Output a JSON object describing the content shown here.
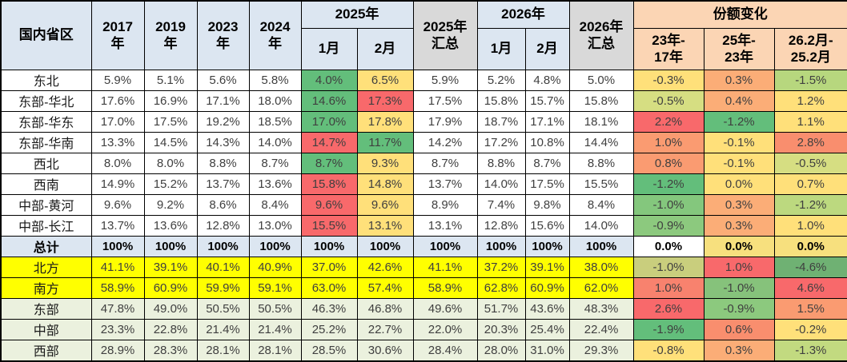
{
  "header": {
    "region": "国内省区",
    "years": [
      [
        "2017",
        "年"
      ],
      [
        "2019",
        "年"
      ],
      [
        "2023",
        "年"
      ],
      [
        "2024",
        "年"
      ]
    ],
    "g2025": "2025年",
    "months_2025": [
      "1月",
      "2月"
    ],
    "sum_2025": [
      "2025年",
      "汇总"
    ],
    "g2026": "2026年",
    "months_2026": [
      "1月",
      "2月"
    ],
    "sum_2026": [
      "2026年",
      "汇总"
    ],
    "share_group": "份额变化",
    "share_cols": [
      [
        "23年-",
        "17年"
      ],
      [
        "25年-",
        "23年"
      ],
      [
        "26.2月-",
        "25.2月"
      ]
    ]
  },
  "palette": {
    "header_blue": "#DCE6F1",
    "header_gray": "#D9D9D9",
    "header_tan": "#FBD5B4",
    "total_row": "#DCE6F1",
    "north_south_row": "#FFFF00",
    "region_group_row": "#EBF1DE",
    "scale_green": "#63BE7B",
    "scale_yellow": "#FFE07A",
    "scale_red": "#F8696B",
    "grid_line": "#000000"
  },
  "chart_data": {
    "type": "table",
    "title": "",
    "columns": [
      "国内省区",
      "2017年",
      "2019年",
      "2023年",
      "2024年",
      "2025年1月",
      "2025年2月",
      "2025年汇总",
      "2026年1月",
      "2026年2月",
      "2026年汇总",
      "23年-17年",
      "25年-23年",
      "26.2月-25.2月"
    ],
    "rows": [
      {
        "label": "东北",
        "row_type": "normal",
        "values": [
          "5.9%",
          "5.1%",
          "5.6%",
          "5.8%",
          "4.0%",
          "6.5%",
          "5.9%",
          "5.2%",
          "4.8%",
          "5.0%",
          "-0.3%",
          "0.3%",
          "-1.5%"
        ],
        "cell_colors": [
          null,
          null,
          null,
          null,
          "#63BE7B",
          "#FFE07A",
          null,
          null,
          null,
          null,
          "#FFE07A",
          "#FBAD77",
          "#B7D77E"
        ]
      },
      {
        "label": "东部-华北",
        "row_type": "normal",
        "values": [
          "17.6%",
          "16.9%",
          "17.1%",
          "18.0%",
          "14.6%",
          "17.3%",
          "17.5%",
          "15.8%",
          "15.7%",
          "15.8%",
          "-0.5%",
          "0.4%",
          "1.2%"
        ],
        "cell_colors": [
          null,
          null,
          null,
          null,
          "#63BE7B",
          "#F8696B",
          null,
          null,
          null,
          null,
          "#D6DE82",
          "#FBAD77",
          "#FFE07A"
        ]
      },
      {
        "label": "东部-华东",
        "row_type": "normal",
        "values": [
          "17.0%",
          "17.5%",
          "19.2%",
          "18.5%",
          "17.0%",
          "17.8%",
          "17.9%",
          "18.7%",
          "17.1%",
          "18.1%",
          "2.2%",
          "-1.2%",
          "1.1%"
        ],
        "cell_colors": [
          null,
          null,
          null,
          null,
          "#63BE7B",
          "#FFE07A",
          null,
          null,
          null,
          null,
          "#F8696B",
          "#63BE7B",
          "#FFE07A"
        ]
      },
      {
        "label": "东部-华南",
        "row_type": "normal",
        "values": [
          "13.3%",
          "14.5%",
          "14.3%",
          "14.0%",
          "14.7%",
          "11.7%",
          "14.2%",
          "17.2%",
          "10.8%",
          "14.4%",
          "1.0%",
          "-0.1%",
          "2.8%"
        ],
        "cell_colors": [
          null,
          null,
          null,
          null,
          "#F8696B",
          "#63BE7B",
          null,
          null,
          null,
          null,
          "#FA9B71",
          "#FFE07A",
          "#F98E6E"
        ]
      },
      {
        "label": "西北",
        "row_type": "normal",
        "values": [
          "8.0%",
          "8.0%",
          "8.8%",
          "8.7%",
          "8.7%",
          "9.3%",
          "8.7%",
          "8.8%",
          "8.7%",
          "8.8%",
          "0.8%",
          "-0.1%",
          "-0.5%"
        ],
        "cell_colors": [
          null,
          null,
          null,
          null,
          "#63BE7B",
          "#FFE07A",
          null,
          null,
          null,
          null,
          "#FA9B71",
          "#FFE07A",
          "#D6DE82"
        ]
      },
      {
        "label": "西南",
        "row_type": "normal",
        "values": [
          "14.9%",
          "15.2%",
          "13.7%",
          "13.6%",
          "15.8%",
          "14.8%",
          "13.7%",
          "14.0%",
          "17.5%",
          "15.5%",
          "-1.2%",
          "0.0%",
          "0.7%"
        ],
        "cell_colors": [
          null,
          null,
          null,
          null,
          "#F8696B",
          "#FFE07A",
          null,
          null,
          null,
          null,
          "#63BE7B",
          "#FFE07A",
          "#FFE07A"
        ]
      },
      {
        "label": "中部-黄河",
        "row_type": "normal",
        "values": [
          "9.6%",
          "9.2%",
          "8.6%",
          "8.4%",
          "9.6%",
          "9.6%",
          "8.9%",
          "7.4%",
          "9.8%",
          "8.4%",
          "-1.0%",
          "0.3%",
          "-1.2%"
        ],
        "cell_colors": [
          null,
          null,
          null,
          null,
          "#F8696B",
          "#FFE07A",
          null,
          null,
          null,
          null,
          "#84C77D",
          "#FBAD77",
          "#BCD97F"
        ]
      },
      {
        "label": "中部-长江",
        "row_type": "normal",
        "values": [
          "13.7%",
          "13.6%",
          "12.8%",
          "13.0%",
          "15.5%",
          "13.1%",
          "13.1%",
          "12.8%",
          "15.6%",
          "14.0%",
          "-0.9%",
          "0.3%",
          "1.0%"
        ],
        "cell_colors": [
          null,
          null,
          null,
          null,
          "#F8696B",
          "#FFE07A",
          null,
          null,
          null,
          null,
          "#8CC97E",
          "#FBAD77",
          "#FFE07A"
        ]
      },
      {
        "label": "总计",
        "row_type": "total",
        "values": [
          "100%",
          "100%",
          "100%",
          "100%",
          "100%",
          "100%",
          "100%",
          "100%",
          "100%",
          "100%",
          "0.0%",
          "0.0%",
          "0.0%"
        ],
        "cell_colors": [
          null,
          null,
          null,
          null,
          null,
          null,
          null,
          null,
          null,
          null,
          "#FFFFFF",
          "#F7E07E",
          "#F7E07E"
        ]
      },
      {
        "label": "北方",
        "row_type": "yellow",
        "values": [
          "41.1%",
          "39.1%",
          "40.1%",
          "40.9%",
          "37.0%",
          "42.6%",
          "41.1%",
          "37.2%",
          "39.1%",
          "38.0%",
          "-1.0%",
          "1.0%",
          "-4.6%"
        ],
        "cell_colors": [
          null,
          null,
          null,
          null,
          null,
          null,
          null,
          null,
          null,
          null,
          "#C9CE7D",
          "#F8696B",
          "#6FB173"
        ]
      },
      {
        "label": "南方",
        "row_type": "yellow",
        "values": [
          "58.9%",
          "60.9%",
          "59.9%",
          "59.1%",
          "63.0%",
          "57.4%",
          "58.9%",
          "62.8%",
          "60.9%",
          "62.0%",
          "1.0%",
          "-1.0%",
          "4.6%"
        ],
        "cell_colors": [
          null,
          null,
          null,
          null,
          null,
          null,
          null,
          null,
          null,
          null,
          "#F8826E",
          "#86C27B",
          "#F8696B"
        ]
      },
      {
        "label": "东部",
        "row_type": "green",
        "values": [
          "47.8%",
          "49.0%",
          "50.5%",
          "50.5%",
          "46.3%",
          "46.8%",
          "49.6%",
          "51.7%",
          "43.6%",
          "48.3%",
          "2.6%",
          "-0.9%",
          "1.5%"
        ],
        "cell_colors": [
          null,
          null,
          null,
          null,
          null,
          null,
          null,
          null,
          null,
          null,
          "#F8696B",
          "#8CC97E",
          "#FA9B71"
        ]
      },
      {
        "label": "中部",
        "row_type": "green",
        "values": [
          "23.3%",
          "22.8%",
          "21.4%",
          "21.4%",
          "25.2%",
          "22.7%",
          "22.0%",
          "20.3%",
          "25.4%",
          "22.4%",
          "-1.9%",
          "0.6%",
          "-0.2%"
        ],
        "cell_colors": [
          null,
          null,
          null,
          null,
          null,
          null,
          null,
          null,
          null,
          null,
          "#63BE7B",
          "#F98E6E",
          "#FFE07A"
        ]
      },
      {
        "label": "西部",
        "row_type": "green",
        "values": [
          "28.9%",
          "28.3%",
          "28.1%",
          "28.1%",
          "28.5%",
          "30.6%",
          "28.4%",
          "28.0%",
          "31.0%",
          "29.3%",
          "-0.8%",
          "0.3%",
          "-1.3%"
        ],
        "cell_colors": [
          null,
          null,
          null,
          null,
          null,
          null,
          null,
          null,
          null,
          null,
          "#FFE07A",
          "#FBAD77",
          "#C2DA80"
        ]
      }
    ]
  }
}
